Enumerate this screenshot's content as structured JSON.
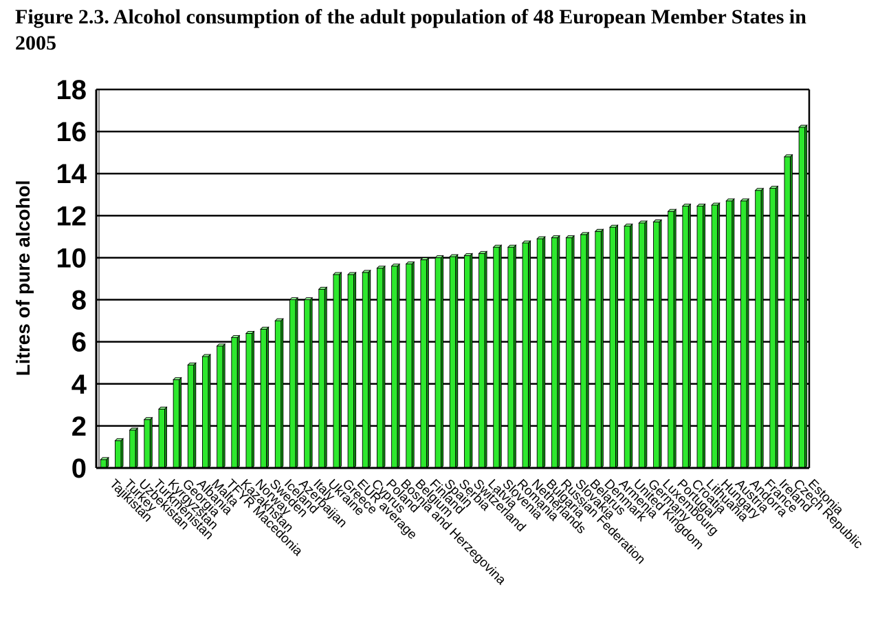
{
  "figure": {
    "title": "Figure 2.3. Alcohol consumption of the adult population of 48 European Member States in 2005"
  },
  "colors": {
    "bar_front": "#2ee82e",
    "bar_side": "#138f13",
    "bar_top": "#8df58d",
    "grid": "#000000"
  },
  "chart_data": {
    "type": "bar",
    "title": "Figure 2.3. Alcohol consumption of the adult population of 48 European Member States in 2005",
    "xlabel": "",
    "ylabel": "Litres of pure alcohol",
    "ylim": [
      0,
      18
    ],
    "yticks": [
      0,
      2,
      4,
      6,
      8,
      10,
      12,
      14,
      16,
      18
    ],
    "grid": true,
    "categories": [
      "Tajikistan",
      "Turkey",
      "Uzbekistan",
      "Turkmenistan",
      "Kyrgyzstan",
      "Georgia",
      "Albania",
      "Malta",
      "TFYR Macedonia",
      "Kazakhstan",
      "Norway",
      "Sweden",
      "Iceland",
      "Azerbaijan",
      "Italy",
      "Ukraine",
      "Greece",
      "EUR average",
      "Cyprus",
      "Poland",
      "Bosnia and Herzegovina",
      "Belgium",
      "Finland",
      "Spain",
      "Serbia",
      "Switzerland",
      "Latvia",
      "Slovenia",
      "Romania",
      "Netherlands",
      "Bulgaria",
      "Russian Federation",
      "Slovakia",
      "Belarus",
      "Denmark",
      "Armenia",
      "United Kingdom",
      "Germany",
      "Luxembourg",
      "Portugal",
      "Croatia",
      "Lithuania",
      "Hungary",
      "Austria",
      "Andorra",
      "France",
      "Ireland",
      "Czech Republic",
      "Estonia"
    ],
    "values": [
      0.4,
      1.3,
      1.8,
      2.3,
      2.8,
      4.2,
      4.9,
      5.3,
      5.8,
      6.2,
      6.4,
      6.6,
      7.0,
      8.0,
      8.0,
      8.5,
      9.2,
      9.2,
      9.3,
      9.5,
      9.6,
      9.7,
      9.9,
      10.0,
      10.05,
      10.1,
      10.2,
      10.5,
      10.5,
      10.7,
      10.9,
      10.95,
      10.95,
      11.1,
      11.25,
      11.45,
      11.5,
      11.65,
      11.7,
      12.2,
      12.45,
      12.45,
      12.5,
      12.7,
      12.7,
      13.2,
      13.3,
      14.8,
      16.2
    ]
  }
}
